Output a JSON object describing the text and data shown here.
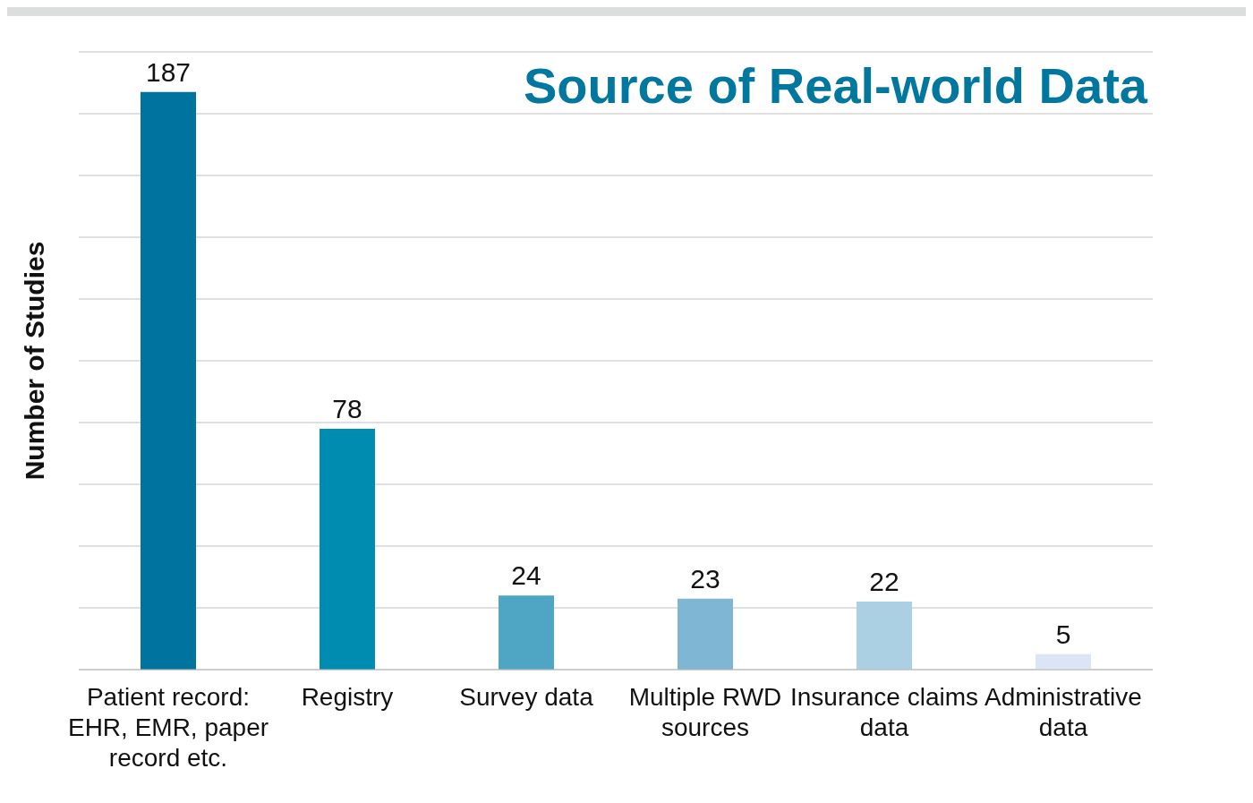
{
  "chart_data": {
    "type": "bar",
    "title": "Source of Real-world Data",
    "ylabel": "Number of Studies",
    "categories": [
      "Patient record: EHR, EMR, paper record etc.",
      "Registry",
      "Survey data",
      "Multiple RWD sources",
      "Insurance claims data",
      "Administrative data"
    ],
    "values": [
      187,
      78,
      24,
      23,
      22,
      5
    ],
    "colors": [
      "#00739f",
      "#008bb0",
      "#4ea5c4",
      "#7fb6d3",
      "#acd0e3",
      "#dbe5f5"
    ],
    "tick_labels": "x",
    "grid": "y",
    "data_labels": true
  }
}
